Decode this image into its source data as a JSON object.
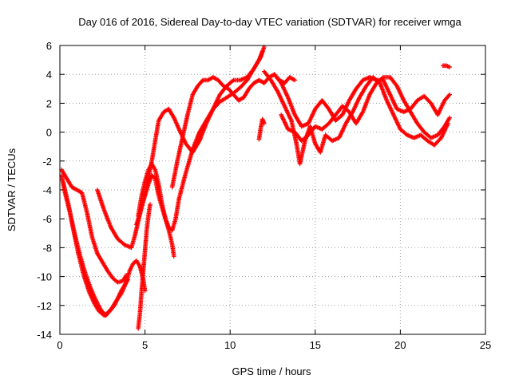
{
  "chart_data": {
    "type": "scatter",
    "title": "Day 016 of 2016, Sidereal Day-to-day VTEC variation (SDTVAR) for receiver wmga",
    "xlabel": "GPS time / hours",
    "ylabel": "SDTVAR / TECUs",
    "xlim": [
      0,
      25
    ],
    "ylim": [
      -14,
      6
    ],
    "xticks": [
      "0",
      "5",
      "10",
      "15",
      "20",
      "25"
    ],
    "yticks": [
      "-14",
      "-12",
      "-10",
      "-8",
      "-6",
      "-4",
      "-2",
      "0",
      "2",
      "4",
      "6"
    ],
    "grid": true,
    "marker": "plus",
    "color": "#ff0000",
    "series": [
      {
        "x": [
          0.1,
          0.3,
          0.6,
          0.9,
          1.2,
          1.5,
          1.8,
          2.1,
          2.4,
          2.7,
          3.0,
          3.3,
          3.6,
          3.9,
          4.1,
          4.3,
          4.5,
          4.7,
          4.9,
          5.0
        ],
        "y": [
          -3.0,
          -4.2,
          -5.6,
          -7.2,
          -8.6,
          -9.8,
          -10.8,
          -11.6,
          -12.3,
          -12.7,
          -12.3,
          -11.7,
          -11.2,
          -10.4,
          -9.6,
          -9.1,
          -8.9,
          -9.3,
          -10.2,
          -11.0
        ]
      },
      {
        "x": [
          0.1,
          0.4,
          0.7,
          1.0,
          1.3,
          1.6,
          1.9,
          2.2,
          2.5,
          2.8,
          3.1,
          3.4,
          3.7,
          3.9
        ],
        "y": [
          -2.6,
          -3.2,
          -3.8,
          -4.0,
          -4.2,
          -5.6,
          -7.3,
          -8.4,
          -9.0,
          -9.6,
          -10.1,
          -10.4,
          -10.3,
          -9.9
        ]
      },
      {
        "x": [
          0.2,
          0.5,
          0.8,
          1.1,
          1.4,
          1.7,
          2.0,
          2.3,
          2.6,
          2.9,
          3.2,
          3.6,
          4.0
        ],
        "y": [
          -3.5,
          -5.0,
          -6.8,
          -8.5,
          -9.9,
          -11.0,
          -11.8,
          -12.4,
          -12.7,
          -12.4,
          -12.0,
          -11.0,
          -10.2
        ]
      },
      {
        "x": [
          4.6,
          4.7,
          4.8,
          4.9,
          5.0,
          5.1,
          5.2,
          5.3
        ],
        "y": [
          -13.6,
          -12.6,
          -11.0,
          -9.6,
          -8.2,
          -6.8,
          -5.8,
          -5.0
        ]
      },
      {
        "x": [
          2.2,
          2.6,
          3.0,
          3.4,
          3.8,
          4.2,
          4.4,
          4.6,
          4.8,
          5.0,
          5.2,
          5.4,
          5.6,
          5.8,
          6.1,
          6.4,
          6.6,
          6.7
        ],
        "y": [
          -4.0,
          -5.4,
          -6.6,
          -7.4,
          -7.8,
          -8.0,
          -7.2,
          -6.2,
          -5.2,
          -4.4,
          -3.6,
          -3.0,
          -3.2,
          -4.4,
          -5.6,
          -6.8,
          -7.8,
          -8.6
        ]
      },
      {
        "x": [
          4.6,
          4.8,
          5.0,
          5.2,
          5.4,
          5.6,
          5.8,
          6.0,
          6.2,
          6.4,
          6.6,
          6.8,
          7.0,
          7.4,
          7.8,
          8.2,
          8.6,
          9.0,
          9.4,
          9.8,
          10.2,
          10.6,
          11.0,
          11.4,
          11.7,
          11.9
        ],
        "y": [
          -5.8,
          -4.4,
          -3.4,
          -2.6,
          -2.2,
          -2.6,
          -3.6,
          -5.0,
          -6.0,
          -6.6,
          -6.8,
          -6.0,
          -4.6,
          -2.8,
          -1.2,
          0.0,
          0.8,
          1.6,
          2.1,
          2.4,
          2.7,
          3.1,
          3.6,
          4.4,
          5.0,
          5.6
        ]
      },
      {
        "x": [
          4.5,
          4.8,
          5.1,
          5.4,
          5.6,
          5.8,
          6.1,
          6.4,
          6.7,
          7.0,
          7.4,
          7.8,
          8.2,
          8.6,
          9.0,
          9.4,
          9.8,
          10.2,
          10.6,
          11.0,
          11.4,
          11.8,
          12.0
        ],
        "y": [
          -6.4,
          -5.2,
          -3.8,
          -2.0,
          -0.6,
          0.8,
          1.4,
          1.6,
          1.0,
          0.2,
          -0.8,
          -1.4,
          -0.6,
          0.6,
          1.6,
          2.6,
          3.2,
          3.6,
          3.6,
          3.8,
          4.4,
          5.2,
          5.9
        ]
      },
      {
        "x": [
          6.6,
          6.9,
          7.2,
          7.5,
          7.8,
          8.1,
          8.4,
          8.7,
          9.0,
          9.3,
          9.6,
          9.9,
          10.2,
          10.5,
          10.8,
          11.1,
          11.4,
          11.7,
          12.0,
          12.3,
          12.6,
          12.9,
          13.2,
          13.5,
          13.8
        ],
        "y": [
          -3.8,
          -2.0,
          -0.4,
          1.2,
          2.6,
          3.2,
          3.6,
          3.6,
          3.8,
          3.6,
          3.2,
          3.0,
          2.6,
          2.2,
          2.4,
          3.0,
          3.4,
          3.6,
          3.4,
          3.8,
          4.0,
          3.6,
          3.4,
          3.8,
          3.6
        ]
      },
      {
        "x": [
          11.7,
          11.8,
          11.9,
          12.0
        ],
        "y": [
          -0.5,
          0.3,
          0.9,
          0.6
        ]
      },
      {
        "x": [
          12.0,
          12.4,
          12.8,
          13.2,
          13.6,
          13.9,
          14.1,
          14.4,
          14.7,
          15.0,
          15.3,
          15.6,
          16.0,
          16.4,
          16.8,
          17.2,
          17.6,
          18.0,
          18.4,
          18.8,
          19.2,
          19.6,
          20.0,
          20.4,
          20.8,
          21.2,
          21.6,
          22.0,
          22.4,
          22.8
        ],
        "y": [
          4.2,
          3.6,
          2.8,
          1.8,
          0.8,
          -0.8,
          -2.2,
          -0.6,
          0.4,
          -0.8,
          -1.4,
          -0.2,
          -0.6,
          -0.4,
          0.6,
          1.4,
          2.4,
          3.2,
          3.8,
          3.4,
          2.2,
          1.2,
          0.2,
          -0.2,
          -0.4,
          -0.2,
          -0.6,
          -0.9,
          -0.4,
          0.6
        ]
      },
      {
        "x": [
          12.6,
          13.0,
          13.4,
          13.8,
          14.2,
          14.6,
          15.0,
          15.4,
          15.8,
          16.2,
          16.6,
          17.0,
          17.4,
          17.8,
          18.2,
          18.6,
          19.0,
          19.4,
          19.8,
          20.2,
          20.6,
          21.0,
          21.4,
          21.8,
          22.2,
          22.6,
          22.9
        ],
        "y": [
          4.0,
          3.4,
          2.4,
          1.2,
          0.4,
          0.6,
          1.6,
          2.2,
          1.6,
          0.8,
          1.2,
          2.2,
          3.0,
          3.6,
          3.8,
          3.6,
          3.6,
          2.6,
          1.6,
          1.4,
          1.6,
          2.2,
          2.5,
          2.0,
          1.2,
          2.2,
          2.6
        ]
      },
      {
        "x": [
          13.0,
          13.4,
          13.8,
          14.2,
          14.6,
          15.0,
          15.4,
          15.8,
          16.2,
          16.6,
          17.0,
          17.4,
          17.8,
          18.2,
          18.6,
          19.0,
          19.4,
          19.8,
          20.2,
          20.6,
          21.0,
          21.4,
          21.8,
          22.2,
          22.6,
          22.9
        ],
        "y": [
          1.2,
          0.2,
          0.0,
          -0.6,
          -0.2,
          0.4,
          0.2,
          0.6,
          1.2,
          1.8,
          1.4,
          0.6,
          1.4,
          2.6,
          3.4,
          3.8,
          3.8,
          3.2,
          2.2,
          1.4,
          0.6,
          0.0,
          -0.4,
          -0.2,
          0.4,
          1.0
        ]
      },
      {
        "x": [
          22.5,
          22.7,
          22.9
        ],
        "y": [
          4.6,
          4.6,
          4.5
        ]
      }
    ]
  }
}
